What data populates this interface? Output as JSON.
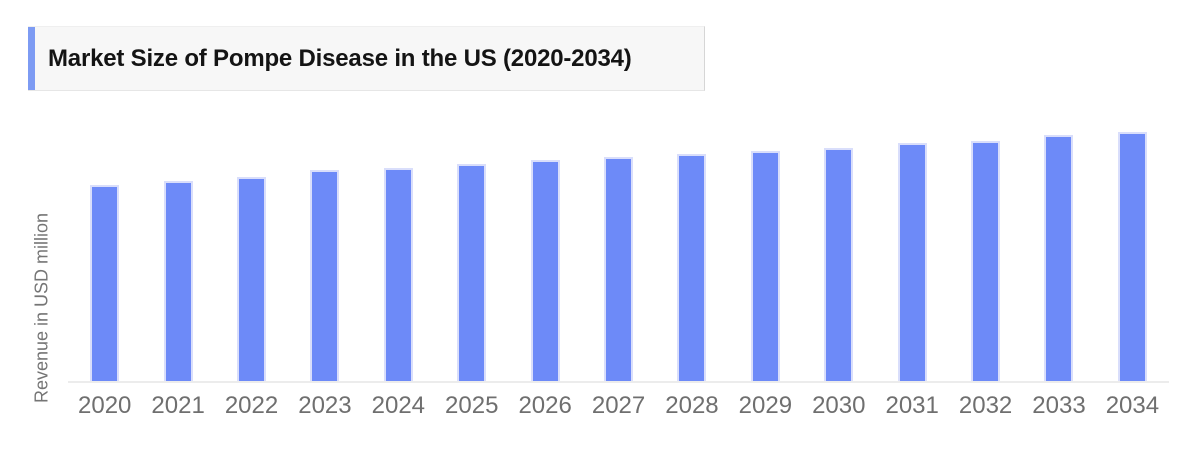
{
  "chart": {
    "title": "Market Size of Pompe Disease in the US (2020-2034)",
    "ylabel": "Revenue in USD million"
  },
  "chart_data": {
    "type": "bar",
    "title": "Market Size of Pompe Disease in the US (2020-2034)",
    "xlabel": "",
    "ylabel": "Revenue in USD million",
    "categories": [
      "2020",
      "2021",
      "2022",
      "2023",
      "2024",
      "2025",
      "2026",
      "2027",
      "2028",
      "2029",
      "2030",
      "2031",
      "2032",
      "2033",
      "2034"
    ],
    "values": [
      196,
      200,
      204,
      211,
      213,
      217,
      221,
      224,
      227,
      230,
      233,
      238,
      240,
      246,
      249
    ],
    "value_scale_note": "y-axis has no numeric tick labels; values are relative bar heights",
    "ylim": [
      0,
      260
    ],
    "grid": false,
    "legend": false,
    "y_ticks_visible": false
  },
  "colors": {
    "bar_fill": "#6d8af8",
    "bar_border": "#d9defb",
    "title_accent": "#7d9bf3",
    "title_background": "#f7f7f7",
    "title_text": "#141414",
    "axis_line": "#ececec",
    "tick_label": "#6f6f6f",
    "axis_title": "#757575"
  }
}
